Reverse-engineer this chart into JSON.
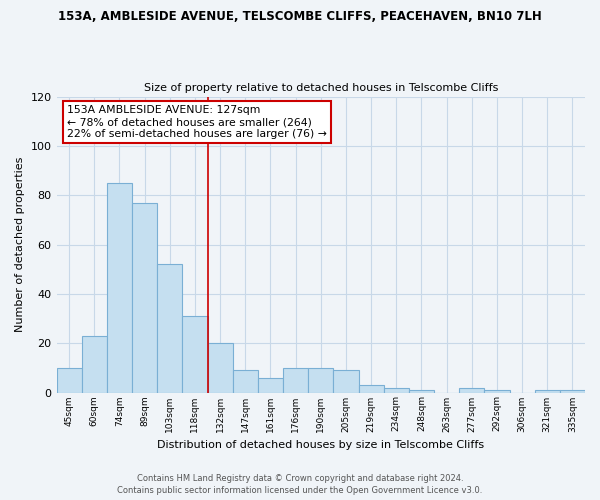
{
  "title": "153A, AMBLESIDE AVENUE, TELSCOMBE CLIFFS, PEACEHAVEN, BN10 7LH",
  "subtitle": "Size of property relative to detached houses in Telscombe Cliffs",
  "xlabel": "Distribution of detached houses by size in Telscombe Cliffs",
  "ylabel": "Number of detached properties",
  "bar_labels": [
    "45sqm",
    "60sqm",
    "74sqm",
    "89sqm",
    "103sqm",
    "118sqm",
    "132sqm",
    "147sqm",
    "161sqm",
    "176sqm",
    "190sqm",
    "205sqm",
    "219sqm",
    "234sqm",
    "248sqm",
    "263sqm",
    "277sqm",
    "292sqm",
    "306sqm",
    "321sqm",
    "335sqm"
  ],
  "bar_values": [
    10,
    23,
    85,
    77,
    52,
    31,
    20,
    9,
    6,
    10,
    10,
    9,
    3,
    2,
    1,
    0,
    2,
    1,
    0,
    1,
    1
  ],
  "bar_color": "#c5dff0",
  "bar_edge_color": "#7aafd4",
  "marker_color": "#cc0000",
  "ylim": [
    0,
    120
  ],
  "yticks": [
    0,
    20,
    40,
    60,
    80,
    100,
    120
  ],
  "annotation_line1": "153A AMBLESIDE AVENUE: 127sqm",
  "annotation_line2": "← 78% of detached houses are smaller (264)",
  "annotation_line3": "22% of semi-detached houses are larger (76) →",
  "footer1": "Contains HM Land Registry data © Crown copyright and database right 2024.",
  "footer2": "Contains public sector information licensed under the Open Government Licence v3.0.",
  "background_color": "#f0f4f8",
  "plot_bg_color": "#f0f4f8",
  "grid_color": "#c8d8e8"
}
